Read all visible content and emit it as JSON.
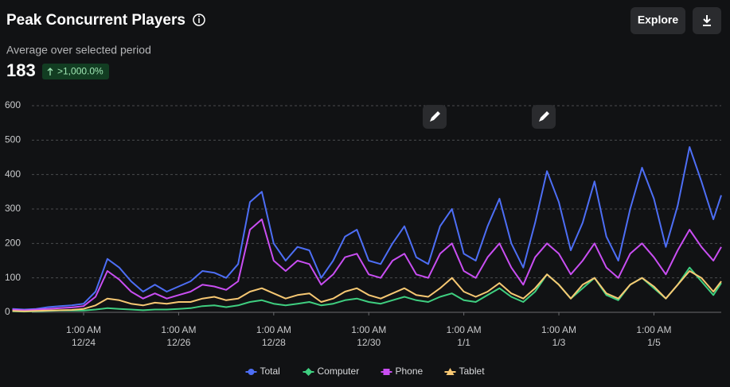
{
  "header": {
    "title": "Peak Concurrent Players",
    "subtitle": "Average over selected period",
    "value": 183,
    "change": ">1,000.0%",
    "button": "Explore"
  },
  "chart_data": {
    "type": "line",
    "x": [
      -36,
      -30,
      -24,
      -18,
      -12,
      -6,
      0,
      6,
      12,
      18,
      24,
      30,
      36,
      42,
      48,
      54,
      60,
      66,
      72,
      78,
      84,
      90,
      96,
      102,
      108,
      114,
      120,
      126,
      132,
      138,
      144,
      150,
      156,
      162,
      168,
      174,
      180,
      186,
      192,
      198,
      204,
      210,
      216,
      222,
      228,
      234,
      240,
      246,
      252,
      258,
      264,
      270,
      276,
      282,
      288,
      294,
      300,
      306,
      312,
      318,
      322
    ],
    "series": [
      {
        "name": "Total",
        "color": "#4d6ef5",
        "values": [
          10,
          8,
          10,
          15,
          18,
          20,
          25,
          60,
          155,
          130,
          90,
          60,
          80,
          60,
          75,
          90,
          120,
          115,
          100,
          140,
          320,
          350,
          200,
          150,
          190,
          180,
          100,
          150,
          220,
          240,
          150,
          140,
          200,
          250,
          160,
          140,
          250,
          300,
          170,
          150,
          250,
          330,
          200,
          130,
          260,
          410,
          320,
          180,
          260,
          380,
          220,
          150,
          300,
          420,
          330,
          190,
          310,
          480,
          380,
          270,
          340
        ]
      },
      {
        "name": "Computer",
        "color": "#3fcf80",
        "values": [
          3,
          2,
          3,
          4,
          5,
          5,
          5,
          8,
          12,
          10,
          8,
          6,
          8,
          8,
          10,
          12,
          18,
          20,
          15,
          20,
          30,
          35,
          25,
          20,
          25,
          30,
          20,
          25,
          35,
          40,
          30,
          25,
          35,
          45,
          35,
          30,
          45,
          55,
          35,
          30,
          50,
          70,
          45,
          30,
          60,
          110,
          80,
          40,
          70,
          100,
          50,
          35,
          80,
          100,
          70,
          40,
          80,
          130,
          90,
          50,
          85
        ]
      },
      {
        "name": "Phone",
        "color": "#c94ef2",
        "values": [
          8,
          6,
          8,
          10,
          12,
          14,
          18,
          45,
          120,
          95,
          60,
          40,
          55,
          40,
          50,
          60,
          80,
          75,
          65,
          90,
          240,
          270,
          150,
          120,
          150,
          140,
          80,
          110,
          160,
          170,
          110,
          100,
          150,
          170,
          110,
          100,
          170,
          200,
          120,
          100,
          160,
          200,
          130,
          80,
          160,
          200,
          170,
          110,
          150,
          200,
          130,
          100,
          170,
          200,
          160,
          110,
          180,
          240,
          190,
          150,
          190
        ]
      },
      {
        "name": "Tablet",
        "color": "#f7c873",
        "values": [
          4,
          3,
          4,
          5,
          6,
          7,
          10,
          20,
          40,
          35,
          25,
          20,
          28,
          25,
          30,
          30,
          40,
          45,
          35,
          40,
          60,
          70,
          55,
          40,
          50,
          55,
          30,
          40,
          60,
          70,
          50,
          40,
          55,
          70,
          50,
          45,
          70,
          100,
          60,
          45,
          60,
          85,
          55,
          40,
          70,
          110,
          80,
          40,
          80,
          100,
          55,
          40,
          80,
          100,
          75,
          40,
          80,
          120,
          100,
          60,
          90
        ]
      }
    ],
    "xlim": [
      -37,
      322
    ],
    "xticks": [
      {
        "value": 0,
        "label": [
          "1:00 AM",
          "12/24"
        ]
      },
      {
        "value": 48,
        "label": [
          "1:00 AM",
          "12/26"
        ]
      },
      {
        "value": 96,
        "label": [
          "1:00 AM",
          "12/28"
        ]
      },
      {
        "value": 144,
        "label": [
          "1:00 AM",
          "12/30"
        ]
      },
      {
        "value": 192,
        "label": [
          "1:00 AM",
          "1/1"
        ]
      },
      {
        "value": 240,
        "label": [
          "1:00 AM",
          "1/3"
        ]
      },
      {
        "value": 288,
        "label": [
          "1:00 AM",
          "1/5"
        ]
      }
    ],
    "ylim": [
      0,
      600
    ],
    "yticks": [
      0,
      100,
      200,
      300,
      400,
      500,
      600
    ],
    "grid": true
  }
}
